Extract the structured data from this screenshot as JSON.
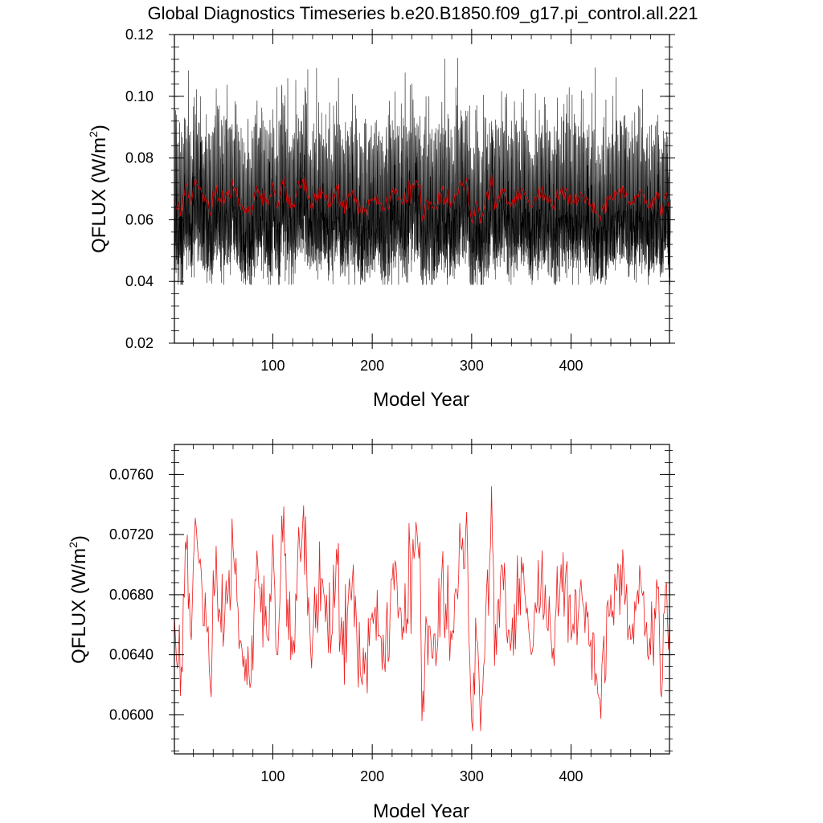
{
  "figure": {
    "title": "Global Diagnostics Timeseries b.e20.B1850.f09_g17.pi_control.all.221"
  },
  "chart_data": [
    {
      "type": "line",
      "panel": "top",
      "title": "Global Diagnostics Timeseries b.e20.B1850.f09_g17.pi_control.all.221",
      "xlabel": "Model Year",
      "ylabel_main": "QFLUX (W/m",
      "ylabel_sup": "2",
      "ylabel_close": ")",
      "xlim": [
        1,
        499
      ],
      "ylim": [
        0.02,
        0.12
      ],
      "x_ticks": [
        100,
        200,
        300,
        400
      ],
      "y_ticks": [
        0.02,
        0.04,
        0.06,
        0.08,
        0.1,
        0.12
      ],
      "y_tick_labels": [
        "0.02",
        "0.04",
        "0.06",
        "0.08",
        "0.10",
        "0.12"
      ],
      "series": [
        {
          "kind": "monthly",
          "color": "#000000",
          "value_range": [
            0.039,
            0.119
          ],
          "description_values": {
            "typical_low": 0.05,
            "typical_high": 0.095,
            "max": 0.119,
            "min": 0.039
          }
        },
        {
          "kind": "annual",
          "color": "#e00000",
          "source": "annual_values"
        }
      ]
    },
    {
      "type": "line",
      "panel": "bottom",
      "xlabel": "Model Year",
      "ylabel_main": "QFLUX (W/m",
      "ylabel_sup": "2",
      "ylabel_close": ")",
      "xlim": [
        1,
        499
      ],
      "ylim": [
        0.0574,
        0.078
      ],
      "x_ticks": [
        100,
        200,
        300,
        400
      ],
      "y_ticks": [
        0.06,
        0.064,
        0.068,
        0.072,
        0.076
      ],
      "y_tick_labels": [
        "0.0600",
        "0.0640",
        "0.0680",
        "0.0720",
        "0.0760"
      ],
      "series": [
        {
          "kind": "annual",
          "color": "#e00000",
          "keypoints_x": [
            1,
            5,
            8,
            12,
            18,
            22,
            25,
            28,
            33,
            38,
            42,
            48,
            55,
            60,
            70,
            77,
            85,
            95,
            100,
            105,
            110,
            120,
            130,
            140,
            150,
            160,
            165,
            170,
            180,
            190,
            200,
            210,
            220,
            230,
            240,
            248,
            250,
            255,
            265,
            270,
            280,
            290,
            295,
            300,
            305,
            310,
            318,
            320,
            325,
            330,
            340,
            350,
            360,
            370,
            380,
            390,
            400,
            410,
            420,
            429,
            440,
            450,
            452,
            460,
            470,
            480,
            486,
            490,
            495,
            499
          ],
          "keypoints_y": [
            0.0665,
            0.0635,
            0.0632,
            0.0715,
            0.065,
            0.0731,
            0.0705,
            0.0695,
            0.066,
            0.0612,
            0.0685,
            0.0655,
            0.068,
            0.0711,
            0.0632,
            0.0618,
            0.0698,
            0.065,
            0.072,
            0.064,
            0.0715,
            0.064,
            0.0727,
            0.065,
            0.069,
            0.0655,
            0.07,
            0.064,
            0.069,
            0.062,
            0.0668,
            0.063,
            0.069,
            0.065,
            0.07,
            0.0715,
            0.0596,
            0.066,
            0.064,
            0.0695,
            0.065,
            0.071,
            0.0735,
            0.0596,
            0.065,
            0.061,
            0.07,
            0.0752,
            0.064,
            0.07,
            0.065,
            0.0705,
            0.064,
            0.069,
            0.065,
            0.07,
            0.065,
            0.069,
            0.065,
            0.061,
            0.068,
            0.07,
            0.071,
            0.065,
            0.069,
            0.064,
            0.069,
            0.0615,
            0.0685,
            0.066
          ]
        }
      ]
    }
  ]
}
